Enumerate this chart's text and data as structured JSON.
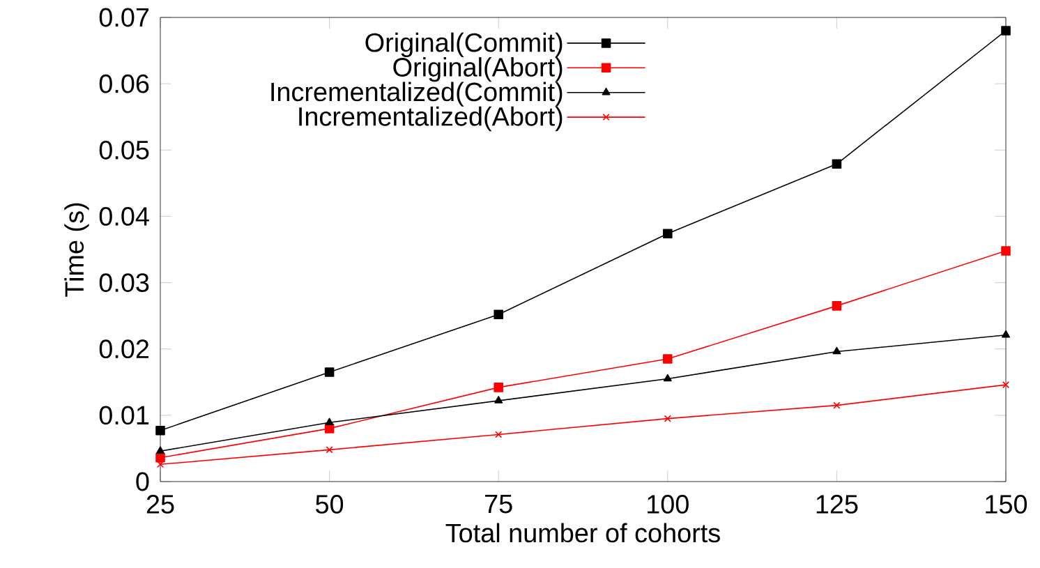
{
  "chart_data": {
    "type": "line",
    "xlabel": "Total number of cohorts",
    "ylabel": "Time (s)",
    "x": [
      25,
      50,
      75,
      100,
      125,
      150
    ],
    "series": [
      {
        "name": "Original(Commit)",
        "color": "#000000",
        "marker": "square",
        "values": [
          0.0077,
          0.0165,
          0.0252,
          0.0374,
          0.0479,
          0.068
        ]
      },
      {
        "name": "Original(Abort)",
        "color": "#ff0000",
        "marker": "square",
        "values": [
          0.0036,
          0.008,
          0.0142,
          0.0185,
          0.0265,
          0.0348
        ]
      },
      {
        "name": "Incrementalized(Commit)",
        "color": "#000000",
        "marker": "triangle",
        "values": [
          0.0046,
          0.0089,
          0.0122,
          0.0155,
          0.0196,
          0.0221
        ]
      },
      {
        "name": "Incrementalized(Abort)",
        "color": "#ff0000",
        "marker": "cross",
        "values": [
          0.0026,
          0.0048,
          0.0071,
          0.0095,
          0.0115,
          0.0146
        ]
      }
    ],
    "xlim": [
      25,
      150
    ],
    "ylim": [
      0,
      0.07
    ],
    "xticks": [
      25,
      50,
      75,
      100,
      125,
      150
    ],
    "yticks": [
      0,
      0.01,
      0.02,
      0.03,
      0.04,
      0.05,
      0.06,
      0.07
    ],
    "grid": false,
    "legend": "top left",
    "line_style": "solid"
  }
}
